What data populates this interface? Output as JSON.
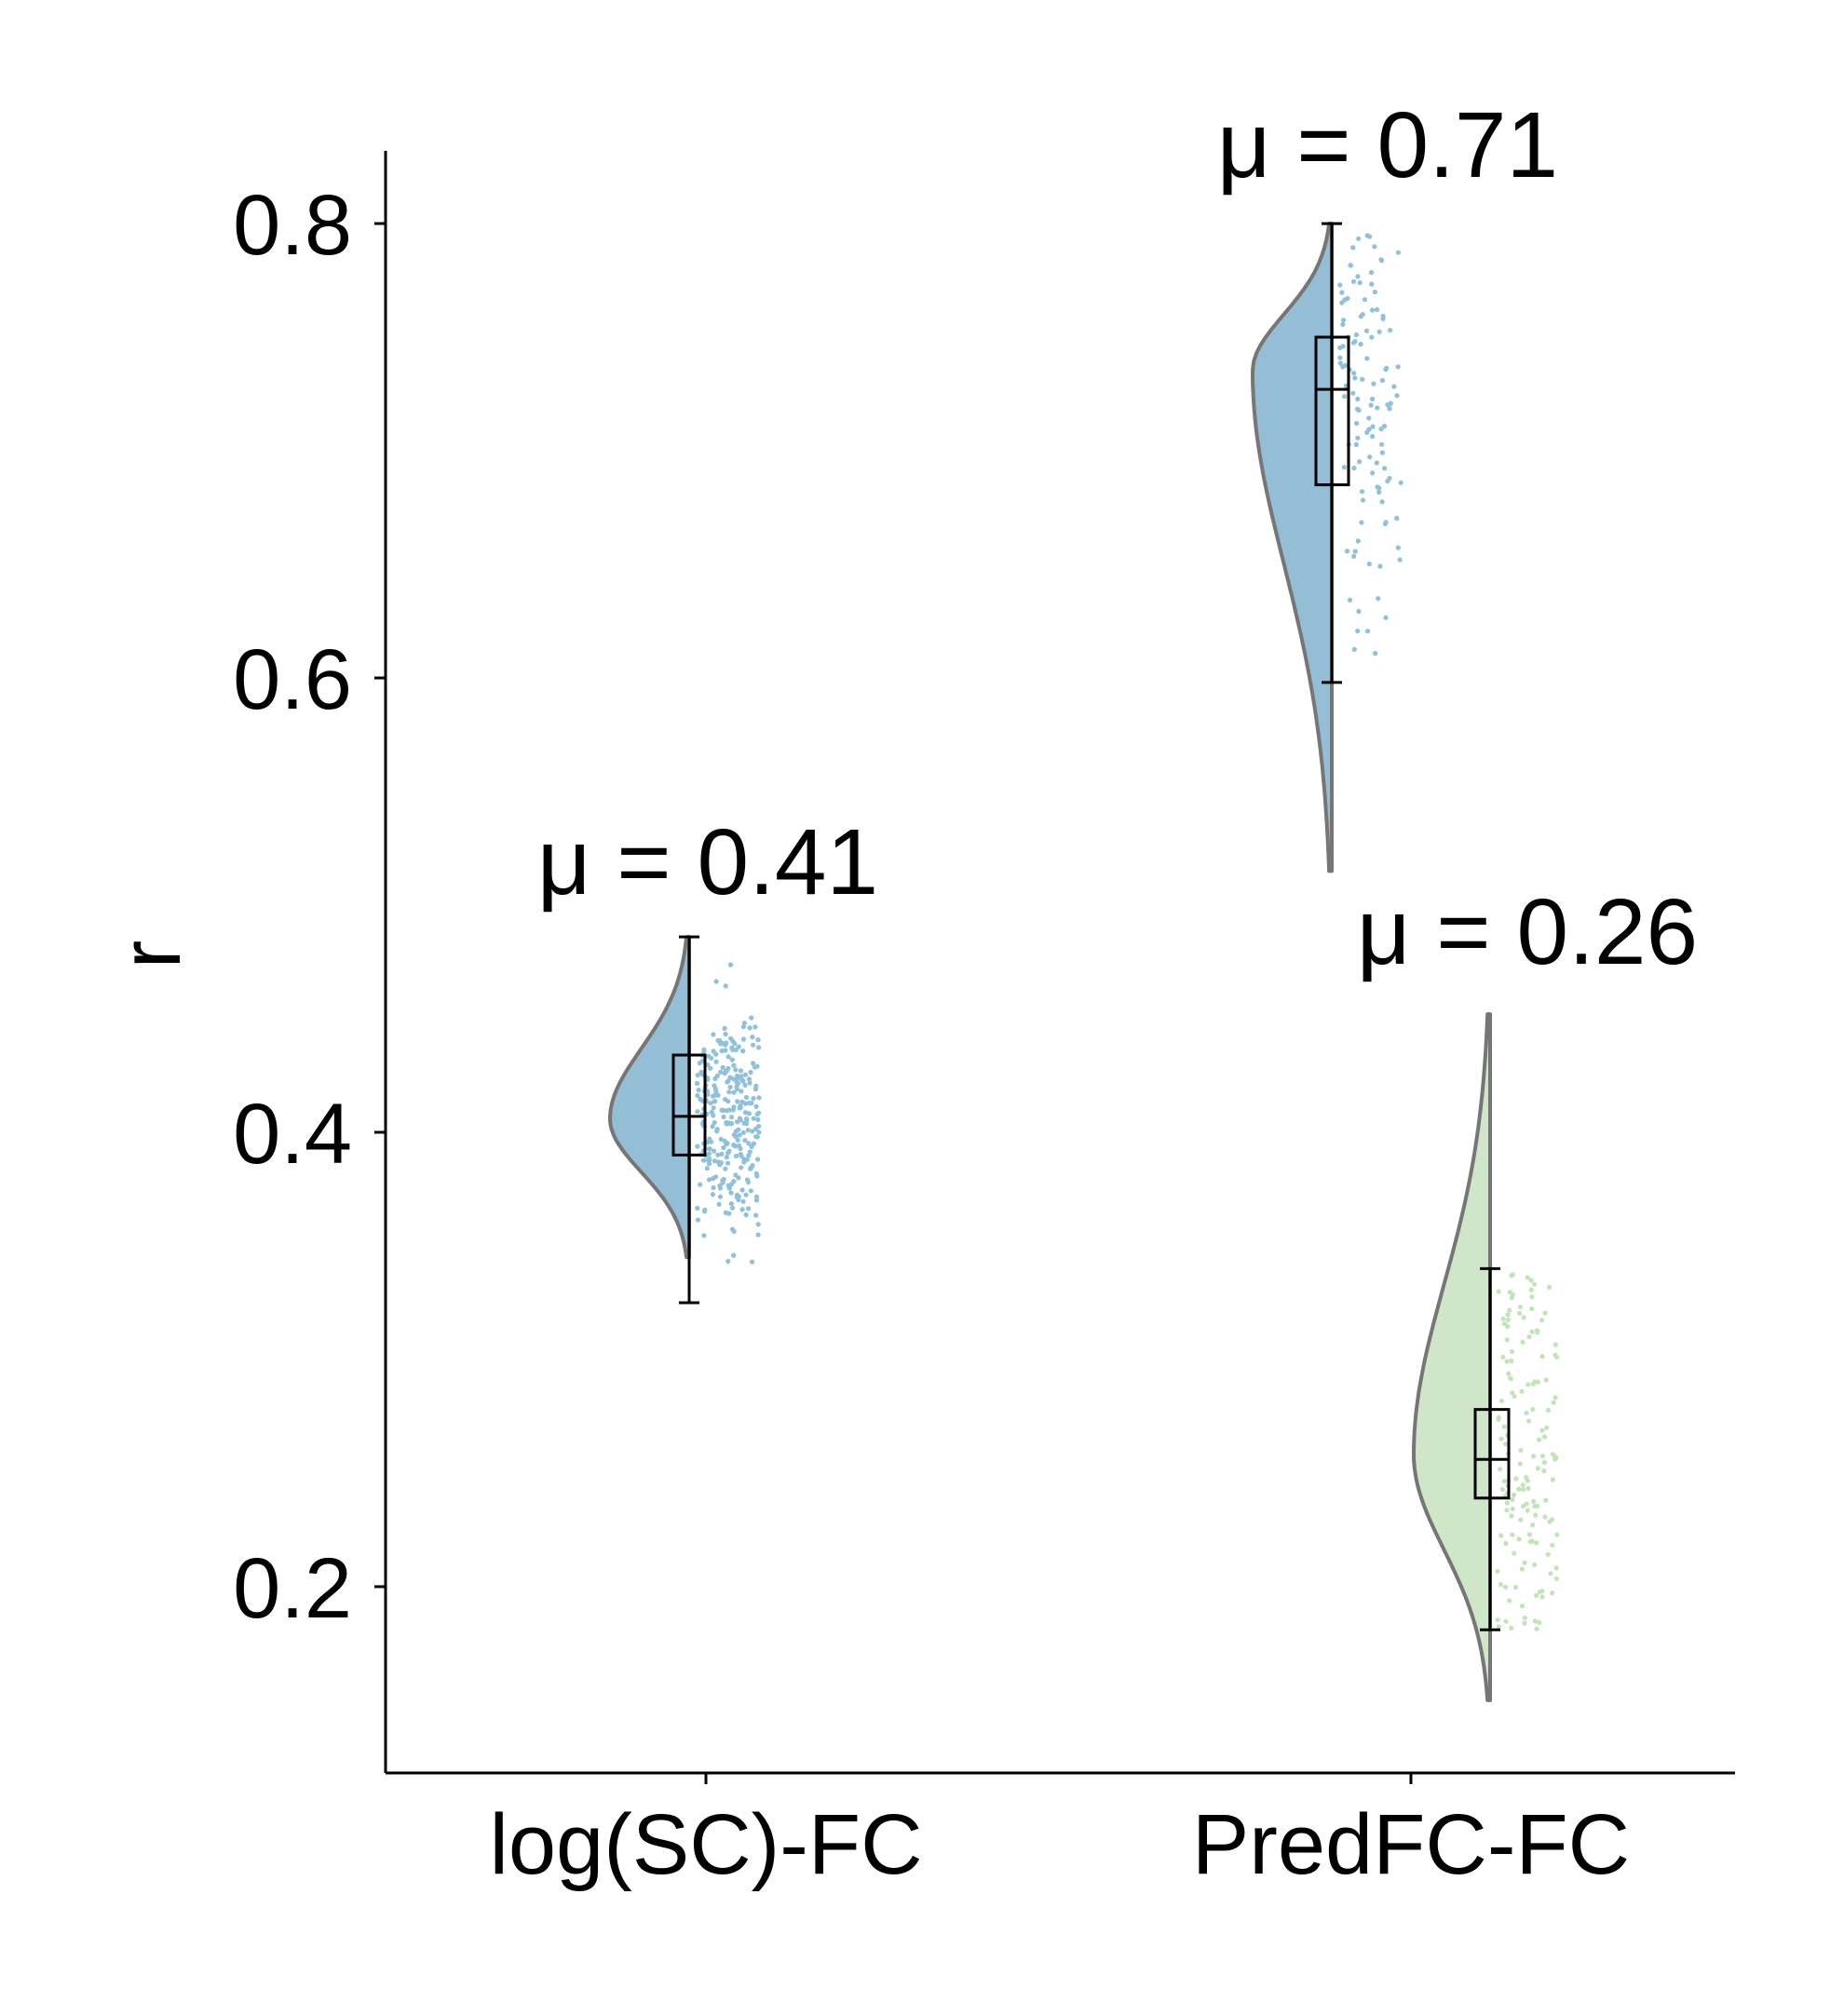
{
  "chart_data": {
    "type": "raincloud",
    "title": "",
    "xlabel": "",
    "ylabel": "r",
    "ylim": [
      0.118,
      0.832
    ],
    "yticks": [
      "0.2",
      "0.4",
      "0.6",
      "0.8"
    ],
    "ytick_values": [
      0.2,
      0.4,
      0.6,
      0.8
    ],
    "categories": [
      "log(SC)-FC",
      "PredFC-FC"
    ],
    "grid": false,
    "legend": "none",
    "groups": [
      {
        "category": "log(SC)-FC",
        "color": "#94bdd6",
        "point_color": "#8ec1db",
        "mean_label": "μ = 0.41",
        "mean": 0.41,
        "box": {
          "min": 0.325,
          "q1": 0.39,
          "median": 0.407,
          "q3": 0.434,
          "max": 0.486
        },
        "density_range": [
          0.345,
          0.486
        ],
        "density_peak": 0.406,
        "n_points": 300
      },
      {
        "category": "PredFC-FC",
        "color": "#94bdd6",
        "point_color": "#8ec1db",
        "mean_label": "μ = 0.71",
        "mean": 0.71,
        "box": {
          "min": 0.598,
          "q1": 0.685,
          "median": 0.727,
          "q3": 0.75,
          "max": 0.8
        },
        "density_range": [
          0.515,
          0.8
        ],
        "density_peak": 0.735,
        "n_points": 120
      },
      {
        "category": "PredFC-FC",
        "color": "#cfe6c8",
        "point_color": "#c2e5b8",
        "mean_label": "μ = 0.26",
        "mean": 0.26,
        "box": {
          "min": 0.181,
          "q1": 0.239,
          "median": 0.256,
          "q3": 0.278,
          "max": 0.34
        },
        "density_range": [
          0.15,
          0.452
        ],
        "density_peak": 0.258,
        "n_points": 150
      }
    ]
  }
}
